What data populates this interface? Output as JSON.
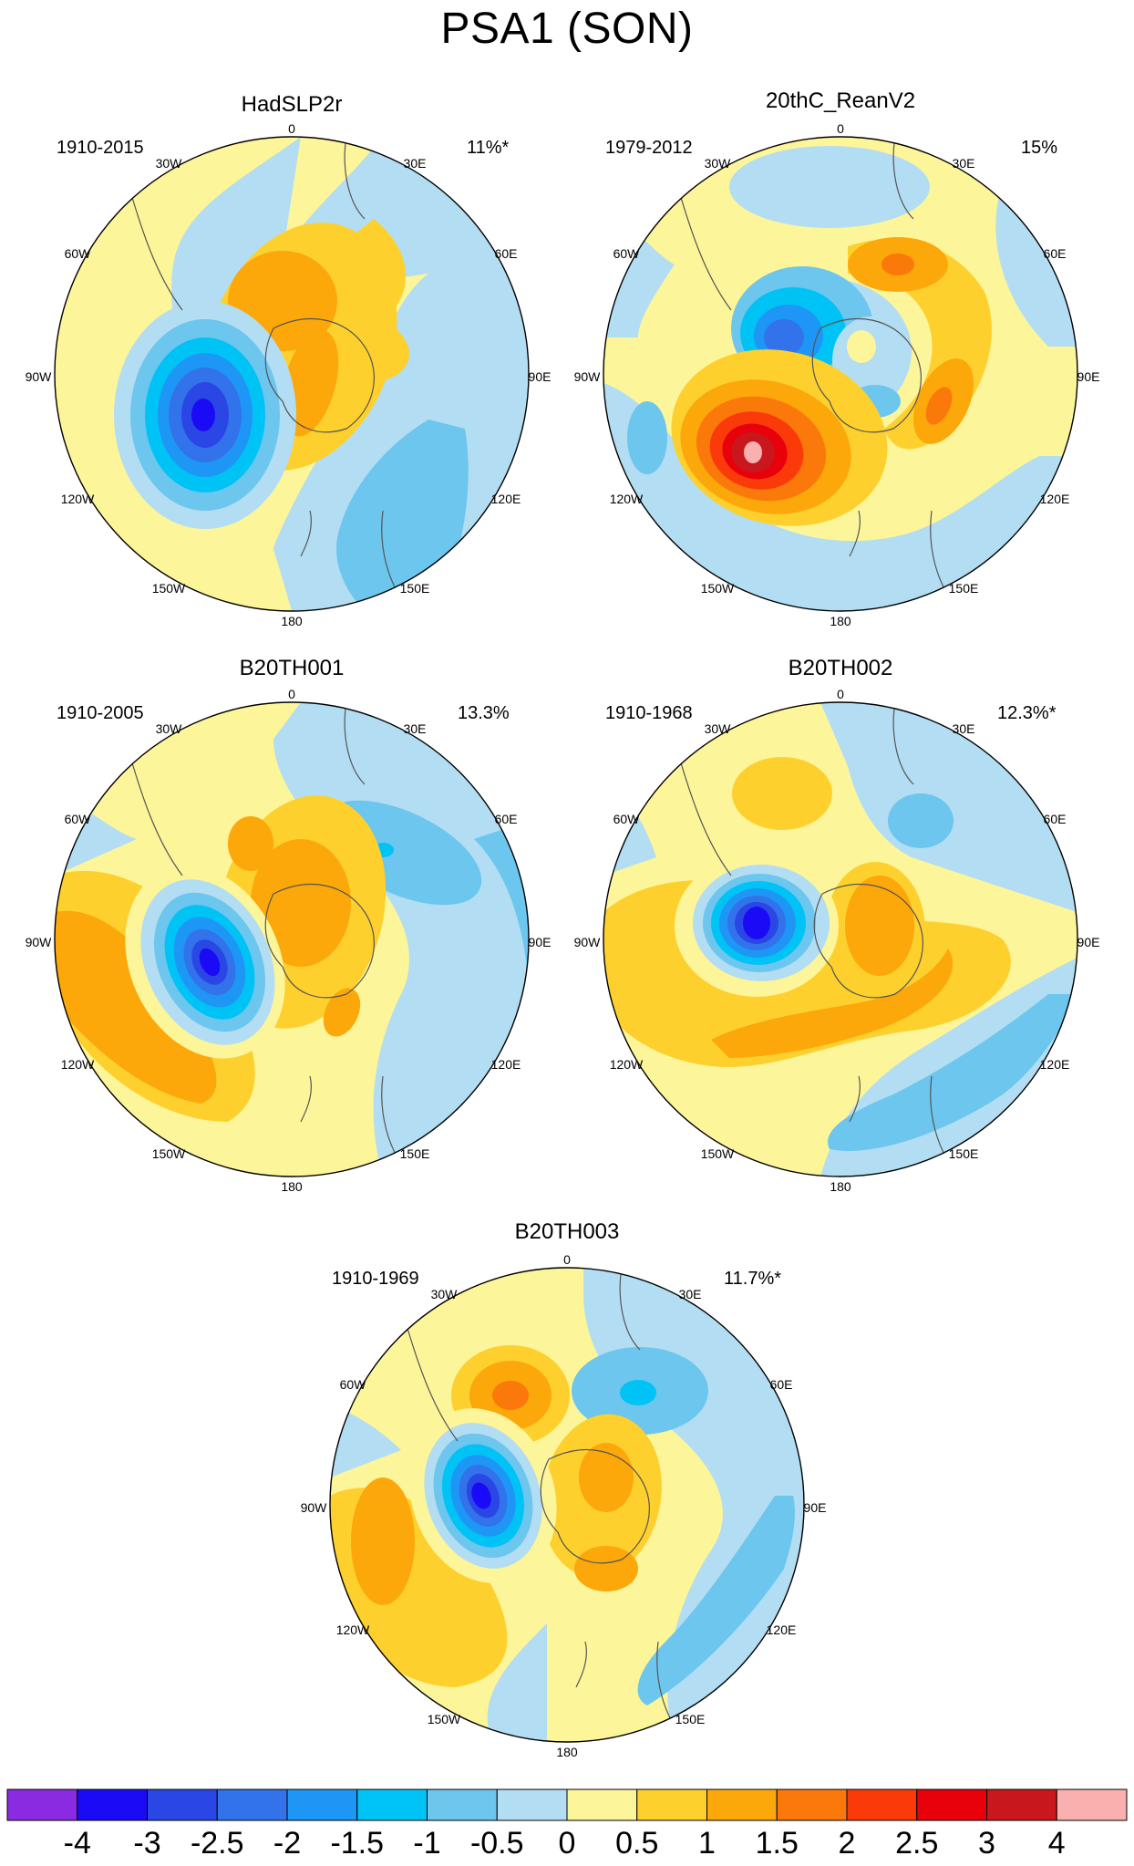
{
  "title": "PSA1 (SON)",
  "panels": [
    {
      "name": "HadSLP2r",
      "period": "1910-2015",
      "variance": "11%*"
    },
    {
      "name": "20thC_ReanV2",
      "period": "1979-2012",
      "variance": "15%"
    },
    {
      "name": "B20TH001",
      "period": "1910-2005",
      "variance": "13.3%"
    },
    {
      "name": "B20TH002",
      "period": "1910-1968",
      "variance": "12.3%*"
    },
    {
      "name": "B20TH003",
      "period": "1910-1969",
      "variance": "11.7%*"
    }
  ],
  "longitude_labels": [
    "0",
    "30E",
    "60E",
    "90E",
    "120E",
    "150E",
    "180",
    "150W",
    "120W",
    "90W",
    "60W",
    "30W"
  ],
  "colorbar": {
    "labels": [
      "-4",
      "-3",
      "-2.5",
      "-2",
      "-1.5",
      "-1",
      "-0.5",
      "0",
      "0.5",
      "1",
      "1.5",
      "2",
      "2.5",
      "3",
      "4"
    ],
    "colors": [
      "#8a2be2",
      "#1a0af5",
      "#2a47e5",
      "#3272ea",
      "#1e96f5",
      "#00c3f5",
      "#6cc6ee",
      "#b3ddf2",
      "#fdf59a",
      "#fdd02e",
      "#fca70a",
      "#fb780a",
      "#fb3a0a",
      "#e8000a",
      "#c8181e",
      "#fbb0b0"
    ]
  },
  "map_colors": {
    "land_outline": "#555555",
    "circle": "#000000"
  }
}
